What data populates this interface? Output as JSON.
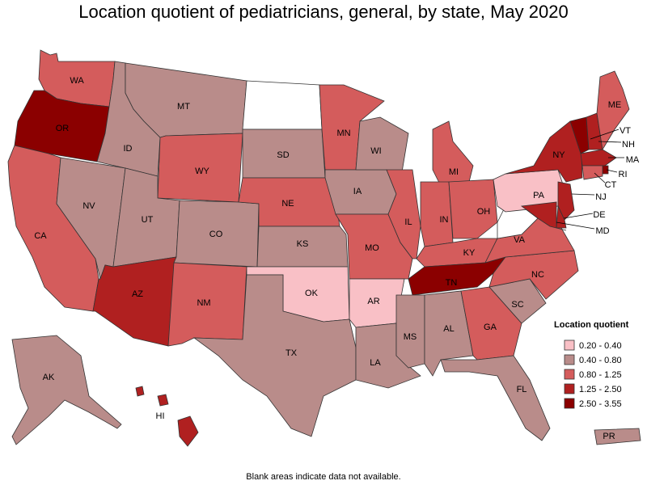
{
  "title": "Location quotient of pediatricians, general, by state, May 2020",
  "footnote": "Blank areas indicate data not available.",
  "legend": {
    "title": "Location quotient",
    "classes": [
      {
        "label": "0.20 - 0.40",
        "color": "#f9c0c6"
      },
      {
        "label": "0.40 - 0.80",
        "color": "#b98c8a"
      },
      {
        "label": "0.80 - 1.25",
        "color": "#d45c5c"
      },
      {
        "label": "1.25 - 2.50",
        "color": "#b02020"
      },
      {
        "label": "2.50 - 3.55",
        "color": "#8b0000"
      }
    ]
  },
  "states": {
    "WA": "0.80 - 1.25",
    "OR": "2.50 - 3.55",
    "CA": "0.80 - 1.25",
    "NV": "0.40 - 0.80",
    "ID": "0.40 - 0.80",
    "MT": "0.40 - 0.80",
    "WY": "0.80 - 1.25",
    "UT": "0.40 - 0.80",
    "AZ": "1.25 - 2.50",
    "CO": "0.40 - 0.80",
    "NM": "0.80 - 1.25",
    "ND": "",
    "SD": "0.40 - 0.80",
    "NE": "0.80 - 1.25",
    "KS": "0.40 - 0.80",
    "OK": "0.20 - 0.40",
    "TX": "0.40 - 0.80",
    "MN": "0.80 - 1.25",
    "IA": "0.40 - 0.80",
    "MO": "0.80 - 1.25",
    "AR": "0.20 - 0.40",
    "LA": "0.40 - 0.80",
    "WI": "0.40 - 0.80",
    "IL": "0.80 - 1.25",
    "MI": "0.80 - 1.25",
    "IN": "0.80 - 1.25",
    "OH": "0.80 - 1.25",
    "KY": "0.80 - 1.25",
    "TN": "2.50 - 3.55",
    "MS": "0.40 - 0.80",
    "AL": "0.40 - 0.80",
    "GA": "0.80 - 1.25",
    "FL": "0.40 - 0.80",
    "SC": "0.40 - 0.80",
    "NC": "0.80 - 1.25",
    "VA": "0.80 - 1.25",
    "WV": "",
    "PA": "0.20 - 0.40",
    "NY": "1.25 - 2.50",
    "VT": "2.50 - 3.55",
    "NH": "1.25 - 2.50",
    "ME": "0.80 - 1.25",
    "MA": "1.25 - 2.50",
    "RI": "2.50 - 3.55",
    "CT": "0.80 - 1.25",
    "NJ": "1.25 - 2.50",
    "DE": "1.25 - 2.50",
    "MD": "1.25 - 2.50",
    "AK": "0.40 - 0.80",
    "HI": "1.25 - 2.50",
    "PR": "0.40 - 0.80"
  }
}
